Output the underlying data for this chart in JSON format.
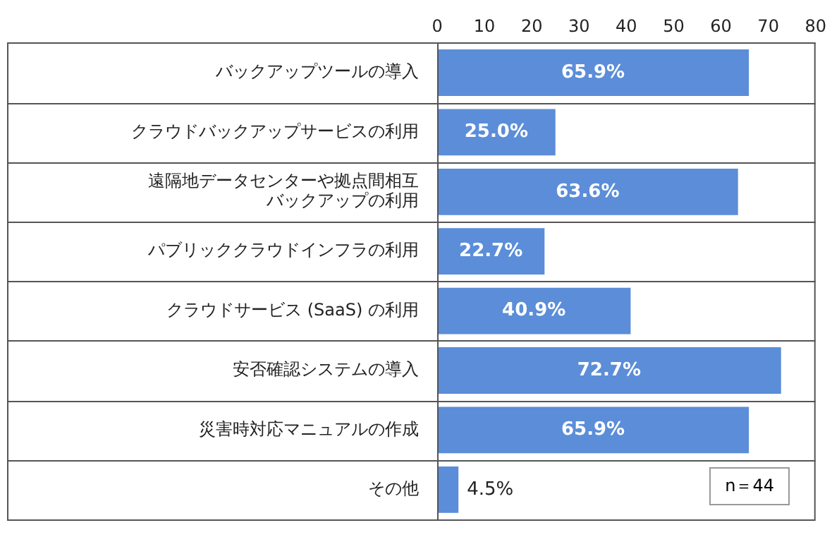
{
  "chart_data": {
    "type": "bar",
    "orientation": "horizontal",
    "categories": [
      "バックアップツールの導入",
      "クラウドバックアップサービスの利用",
      "遠隔地データセンターや拠点間相互バックアップの利用",
      "パブリッククラウドインフラの利用",
      "クラウドサービス (SaaS) の利用",
      "安否確認システムの導入",
      "災害時対応マニュアルの作成",
      "その他"
    ],
    "values": [
      65.9,
      25.0,
      63.6,
      22.7,
      40.9,
      72.7,
      65.9,
      4.5
    ],
    "value_labels": [
      "65.9%",
      "25.0%",
      "63.6%",
      "22.7%",
      "40.9%",
      "72.7%",
      "65.9%",
      "4.5%"
    ],
    "color": "#5b8dd9",
    "xlim": [
      0,
      80
    ],
    "xticks": [
      0,
      10,
      20,
      30,
      40,
      50,
      60,
      70,
      80
    ],
    "grid": "y",
    "legend": false,
    "annotations": [
      "n＝44"
    ]
  }
}
